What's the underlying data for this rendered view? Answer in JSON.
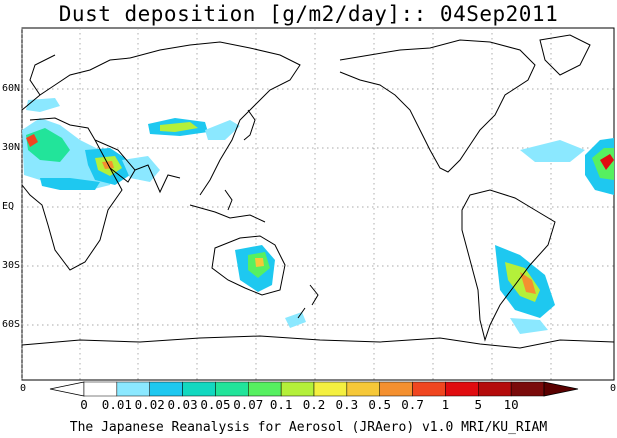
{
  "title": "Dust deposition [g/m2/day]:: 04Sep2011",
  "credit": "The Japanese Reanalysis for Aerosol (JRAero) v1.0 MRI/KU_RIAM",
  "lat_labels": [
    "60N",
    "30N",
    "EQ",
    "30S",
    "60S"
  ],
  "edge_labels": {
    "left": "0",
    "right": "0"
  },
  "colorbar": {
    "labels": [
      "0",
      "0.01",
      "0.02",
      "0.03",
      "0.05",
      "0.07",
      "0.1",
      "0.2",
      "0.3",
      "0.5",
      "0.7",
      "1",
      "5",
      "10"
    ],
    "colors": [
      "#ffffff",
      "#ffffff",
      "#8be8ff",
      "#1ec8f0",
      "#12d8c0",
      "#22e49a",
      "#56f060",
      "#b4f03a",
      "#f4f040",
      "#f6c838",
      "#f49030",
      "#f04620",
      "#e00c10",
      "#b40a0a",
      "#7a0a0a",
      "#5a0000"
    ]
  },
  "legend_colors": {
    "coast": "#000000",
    "grid": "#8c8c8c"
  }
}
